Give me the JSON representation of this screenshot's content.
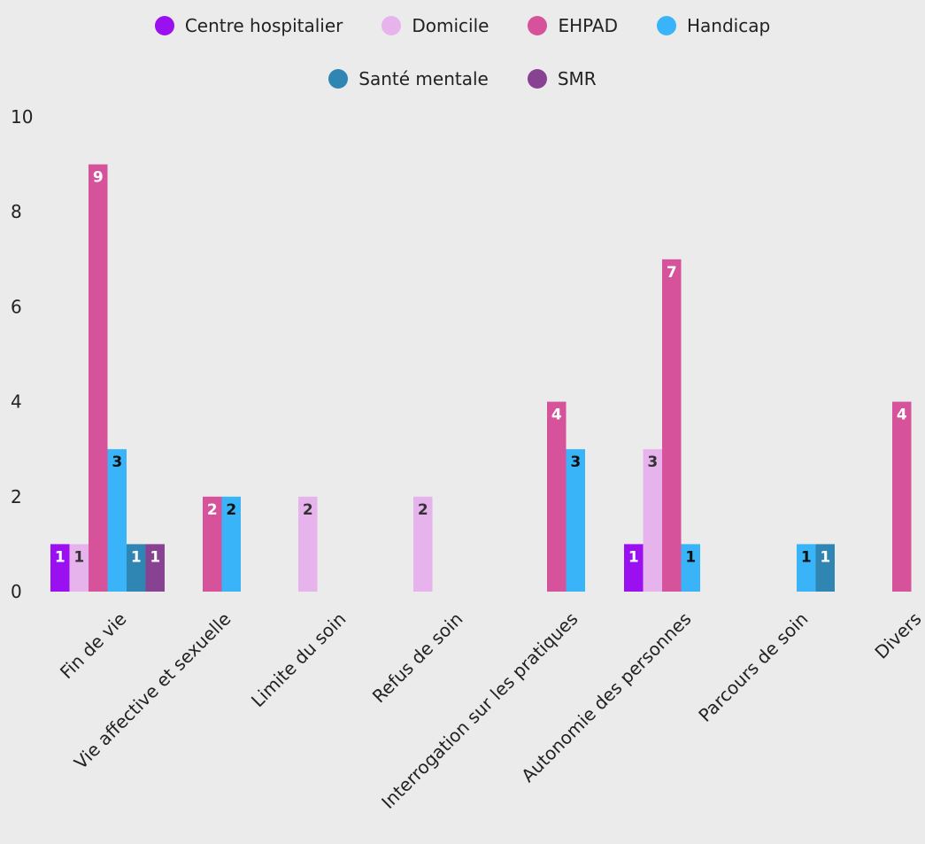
{
  "chart_data": {
    "type": "bar",
    "title": "",
    "xlabel": "",
    "ylabel": "",
    "ylim": [
      0,
      10
    ],
    "yticks": [
      0,
      2,
      4,
      6,
      8,
      10
    ],
    "grid": false,
    "legend_position": "top-center",
    "categories": [
      "Fin de vie",
      "Vie affective et sexuelle",
      "Limite du soin",
      "Refus de soin",
      "Interrogation sur les pratiques",
      "Autonomie des personnes",
      "Parcours de soin",
      "Divers"
    ],
    "series": [
      {
        "name": "Centre hospitalier",
        "color": "#9b10f0",
        "label_color": "#ffffff",
        "values": [
          1,
          null,
          null,
          null,
          null,
          1,
          null,
          null
        ]
      },
      {
        "name": "Domicile",
        "color": "#e6b3ec",
        "label_color": "#333333",
        "values": [
          1,
          null,
          2,
          2,
          null,
          3,
          null,
          null
        ]
      },
      {
        "name": "EHPAD",
        "color": "#d6529a",
        "label_color": "#ffffff",
        "values": [
          9,
          2,
          null,
          null,
          4,
          7,
          null,
          4
        ]
      },
      {
        "name": "Handicap",
        "color": "#3ab4f8",
        "label_color": "#111111",
        "values": [
          3,
          2,
          null,
          null,
          3,
          1,
          1,
          null
        ]
      },
      {
        "name": "Santé mentale",
        "color": "#2f86b2",
        "label_color": "#ffffff",
        "values": [
          1,
          null,
          null,
          null,
          null,
          null,
          1,
          null
        ]
      },
      {
        "name": "SMR",
        "color": "#874291",
        "label_color": "#ffffff",
        "values": [
          1,
          null,
          null,
          null,
          null,
          null,
          null,
          null
        ]
      }
    ]
  }
}
